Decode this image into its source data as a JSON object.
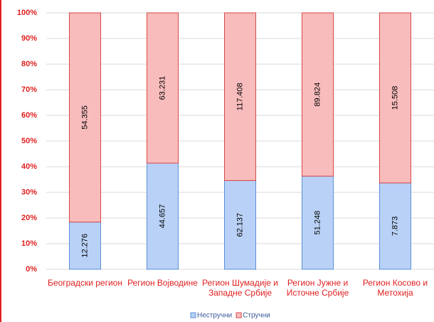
{
  "chart_data": {
    "type": "stacked_percent_bar",
    "categories": [
      "Београдски регион",
      "Регион Војводине",
      "Регион Шумадије и Западне Србије",
      "Регион Јужне и Источне Србије",
      "Регион Косово и Метохија"
    ],
    "series": [
      {
        "name": "Нестручни",
        "color": "#b9d1f6",
        "values": [
          12276,
          44657,
          62137,
          51248,
          7873
        ],
        "value_labels": [
          "12.276",
          "44.657",
          "62.137",
          "51.248",
          "7.873"
        ]
      },
      {
        "name": "Стручни",
        "color": "#f8bcbc",
        "values": [
          54355,
          63231,
          117408,
          89824,
          15508
        ],
        "value_labels": [
          "54.355",
          "63.231",
          "117.408",
          "89.824",
          "15.508"
        ]
      }
    ],
    "ylim": [
      0,
      100
    ],
    "yticks": [
      {
        "value": 0,
        "label": "0%"
      },
      {
        "value": 10,
        "label": "10%"
      },
      {
        "value": 20,
        "label": "20%"
      },
      {
        "value": 30,
        "label": "30%"
      },
      {
        "value": 40,
        "label": "40%"
      },
      {
        "value": 50,
        "label": "50%"
      },
      {
        "value": 60,
        "label": "60%"
      },
      {
        "value": 70,
        "label": "70%"
      },
      {
        "value": 80,
        "label": "80%"
      },
      {
        "value": 90,
        "label": "90%"
      },
      {
        "value": 100,
        "label": "100%"
      }
    ],
    "grid": true,
    "legend": "bottom"
  }
}
